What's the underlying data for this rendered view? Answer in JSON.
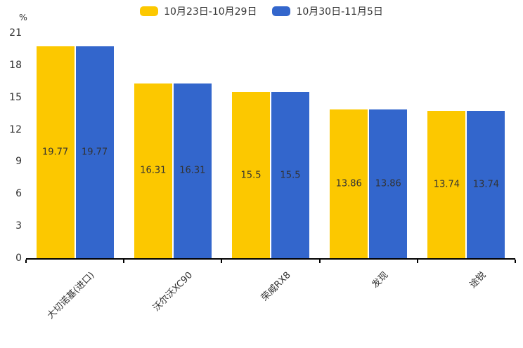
{
  "chart_data": {
    "type": "bar",
    "title": "",
    "xlabel": "",
    "ylabel": "%",
    "categories": [
      "大切诺基(进口)",
      "沃尔沃XC90",
      "荣威RX8",
      "发现",
      "途锐"
    ],
    "series": [
      {
        "name": "10月23日-10月29日",
        "color": "#FCC800",
        "values": [
          19.77,
          16.31,
          15.5,
          13.86,
          13.74
        ]
      },
      {
        "name": "10月30日-11月5日",
        "color": "#3366CC",
        "values": [
          19.77,
          16.31,
          15.5,
          13.86,
          13.74
        ]
      }
    ],
    "ylim": [
      0,
      21
    ],
    "yticks": [
      0,
      3,
      6,
      9,
      12,
      15,
      18,
      21
    ],
    "grid": false,
    "legend_position": "top",
    "value_label_position": "inside-center",
    "value_label_color": "#333333",
    "axis_line_color": "#000000",
    "tick_label_color": "#333333"
  }
}
